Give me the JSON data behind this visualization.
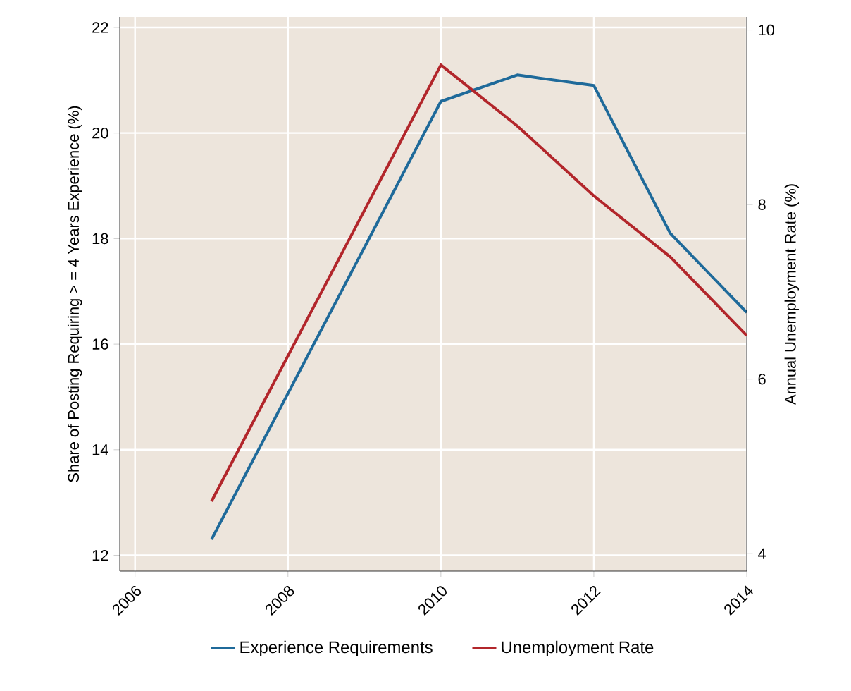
{
  "chart_data": {
    "type": "line",
    "x": [
      2007,
      2010,
      2011,
      2012,
      2013,
      2014
    ],
    "series": [
      {
        "name": "Experience Requirements",
        "color": "#1f6a9a",
        "values": [
          12.3,
          20.6,
          21.1,
          20.9,
          18.1,
          16.6
        ]
      },
      {
        "name": "Unemployment Rate",
        "color": "#b2262b",
        "axis": "y2",
        "values": [
          4.6,
          9.6,
          8.9,
          8.1,
          7.4,
          6.5
        ]
      }
    ],
    "ylabel": "Share of Posting Requiring > = 4 Years Experience (%)",
    "y2label": "Annual Unemployment Rate (%)",
    "xlim": [
      2005.8,
      2014
    ],
    "xticks": [
      2006,
      2008,
      2010,
      2012,
      2014
    ],
    "ylim": [
      11.7,
      22.2
    ],
    "yticks": [
      12,
      14,
      16,
      18,
      20,
      22
    ],
    "y2lim": [
      3.8,
      10.15
    ],
    "y2ticks": [
      4,
      6,
      8,
      10
    ],
    "grid": true,
    "legend": "bottom",
    "marker": "none",
    "line_style": "solid"
  }
}
